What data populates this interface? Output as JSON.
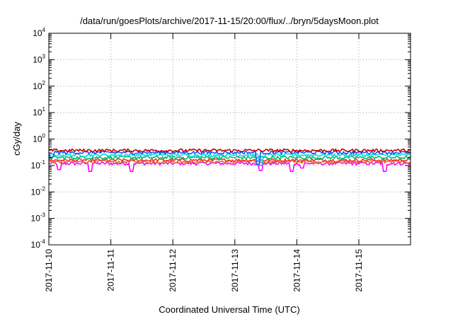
{
  "chart_data": {
    "type": "line",
    "title": "/data/run/goesPlots/archive/2017-11-15/20:00/flux/../bryn/5daysMoon.plot",
    "xlabel": "Coordinated Universal Time (UTC)",
    "ylabel": "cGy/day",
    "yscale": "log",
    "ylim": [
      0.0001,
      10000
    ],
    "xlim": [
      "2017-11-10",
      "2017-11-15T20:00"
    ],
    "grid": true,
    "x_ticks": [
      "2017-11-10",
      "2017-11-11",
      "2017-11-12",
      "2017-11-13",
      "2017-11-14",
      "2017-11-15"
    ],
    "y_ticks": [
      {
        "value": 0.0001,
        "base": "10",
        "exp": "-4"
      },
      {
        "value": 0.001,
        "base": "10",
        "exp": "-3"
      },
      {
        "value": 0.01,
        "base": "10",
        "exp": "-2"
      },
      {
        "value": 0.1,
        "base": "10",
        "exp": "-1"
      },
      {
        "value": 1,
        "base": "10",
        "exp": "0"
      },
      {
        "value": 10,
        "base": "10",
        "exp": "1"
      },
      {
        "value": 100,
        "base": "10",
        "exp": "2"
      },
      {
        "value": 1000,
        "base": "10",
        "exp": "3"
      },
      {
        "value": 10000,
        "base": "10",
        "exp": "4"
      }
    ],
    "series": [
      {
        "color": "#ff00ff",
        "base": 0.12,
        "dips": [
          {
            "t": "2017-11-10T04:00",
            "v": 0.07
          },
          {
            "t": "2017-11-10T16:00",
            "v": 0.06
          },
          {
            "t": "2017-11-11T08:00",
            "v": 0.06
          },
          {
            "t": "2017-11-13T10:00",
            "v": 0.065
          },
          {
            "t": "2017-11-13T22:00",
            "v": 0.06
          },
          {
            "t": "2017-11-14T02:00",
            "v": 0.08
          },
          {
            "t": "2017-11-15T10:00",
            "v": 0.06
          }
        ]
      },
      {
        "color": "#c87828",
        "base": 0.14,
        "dips": []
      },
      {
        "color": "#ff3030",
        "base": 0.16,
        "dips": []
      },
      {
        "color": "#00c060",
        "base": 0.2,
        "dips": []
      },
      {
        "color": "#00d8e8",
        "base": 0.25,
        "dips": [
          {
            "t": "2017-11-13T10:00",
            "v": 0.1
          }
        ]
      },
      {
        "color": "#2050ff",
        "base": 0.31,
        "dips": [
          {
            "t": "2017-11-10T01:00",
            "v": 0.2
          },
          {
            "t": "2017-11-13T09:00",
            "v": 0.11
          }
        ]
      },
      {
        "color": "#c00000",
        "base": 0.37,
        "dips": []
      }
    ]
  }
}
